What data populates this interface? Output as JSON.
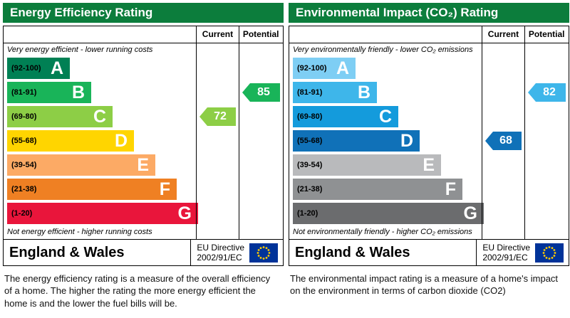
{
  "header_color": "#0c7d3c",
  "chart_data": [
    {
      "type": "bar",
      "title": "Energy Efficiency Rating",
      "current_label": "Current",
      "potential_label": "Potential",
      "top_note": "Very energy efficient - lower running costs",
      "bottom_note": "Not energy efficient - higher running costs",
      "bands": [
        {
          "letter": "A",
          "range": "(92-100)",
          "range_min": 92,
          "range_max": 100,
          "color": "#008054"
        },
        {
          "letter": "B",
          "range": "(81-91)",
          "range_min": 81,
          "range_max": 91,
          "color": "#19b459"
        },
        {
          "letter": "C",
          "range": "(69-80)",
          "range_min": 69,
          "range_max": 80,
          "color": "#8dce46"
        },
        {
          "letter": "D",
          "range": "(55-68)",
          "range_min": 55,
          "range_max": 68,
          "color": "#ffd500"
        },
        {
          "letter": "E",
          "range": "(39-54)",
          "range_min": 39,
          "range_max": 54,
          "color": "#fcaa65"
        },
        {
          "letter": "F",
          "range": "(21-38)",
          "range_min": 21,
          "range_max": 38,
          "color": "#ef8023"
        },
        {
          "letter": "G",
          "range": "(1-20)",
          "range_min": 1,
          "range_max": 20,
          "color": "#e9153b"
        }
      ],
      "current": 72,
      "current_band": "C",
      "potential": 85,
      "potential_band": "B",
      "footer_region": "England & Wales",
      "directive_line1": "EU Directive",
      "directive_line2": "2002/91/EC",
      "caption": "The energy efficiency rating is a measure of the overall efficiency of a home.  The higher the rating the more energy efficient the home is and the lower the fuel bills will be."
    },
    {
      "type": "bar",
      "title": "Environmental Impact (CO₂) Rating",
      "current_label": "Current",
      "potential_label": "Potential",
      "top_note": "Very environmentally friendly - lower CO₂ emissions",
      "bottom_note": "Not environmentally friendly - higher CO₂ emissions",
      "bands": [
        {
          "letter": "A",
          "range": "(92-100)",
          "range_min": 92,
          "range_max": 100,
          "color": "#7ecef4"
        },
        {
          "letter": "B",
          "range": "(81-91)",
          "range_min": 81,
          "range_max": 91,
          "color": "#3eb6ea"
        },
        {
          "letter": "C",
          "range": "(69-80)",
          "range_min": 69,
          "range_max": 80,
          "color": "#149bdc"
        },
        {
          "letter": "D",
          "range": "(55-68)",
          "range_min": 55,
          "range_max": 68,
          "color": "#1071b8"
        },
        {
          "letter": "E",
          "range": "(39-54)",
          "range_min": 39,
          "range_max": 54,
          "color": "#b9babc"
        },
        {
          "letter": "F",
          "range": "(21-38)",
          "range_min": 21,
          "range_max": 38,
          "color": "#8f9193"
        },
        {
          "letter": "G",
          "range": "(1-20)",
          "range_min": 1,
          "range_max": 20,
          "color": "#6b6c6e"
        }
      ],
      "current": 68,
      "current_band": "D",
      "potential": 82,
      "potential_band": "B",
      "footer_region": "England & Wales",
      "directive_line1": "EU Directive",
      "directive_line2": "2002/91/EC",
      "caption": "The environmental impact rating is a measure of a home's impact on the environment in terms of carbon dioxide (CO2)"
    }
  ]
}
